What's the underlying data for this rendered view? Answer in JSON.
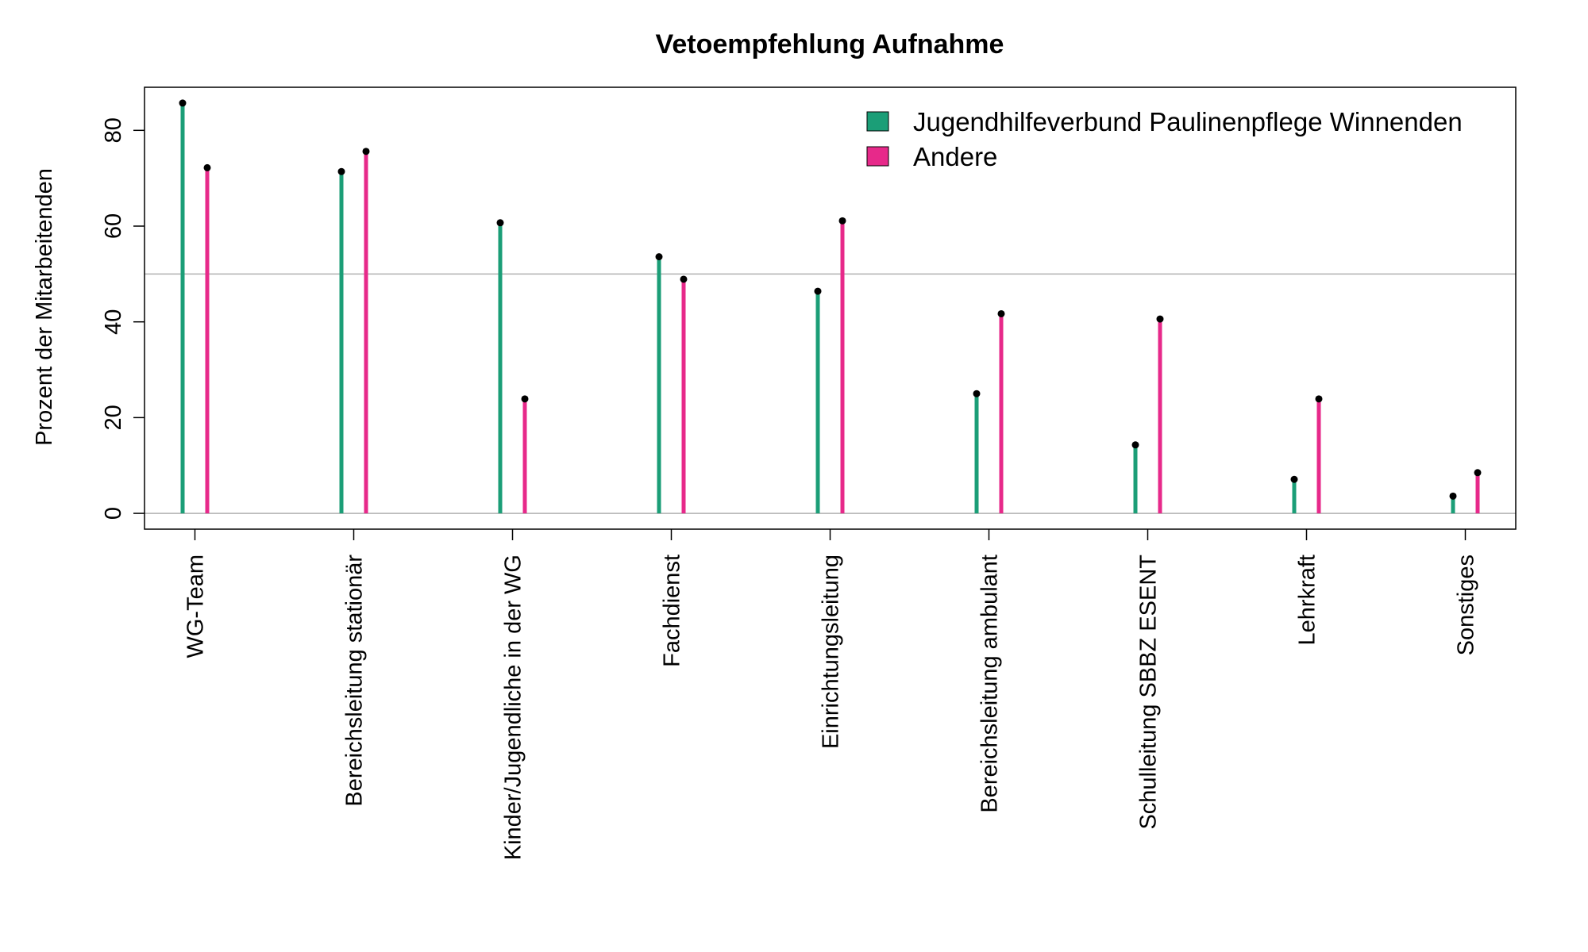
{
  "chart_data": {
    "type": "bar",
    "title": "Vetoempfehlung Aufnahme",
    "xlabel": "",
    "ylabel": "Prozent der Mitarbeitenden",
    "ylim": [
      -3.3,
      89
    ],
    "yticks": [
      0,
      20,
      40,
      60,
      80
    ],
    "reference_line": 50,
    "grid": false,
    "legend_position": "top-right",
    "categories": [
      "WG-Team",
      "Bereichsleitung stationär",
      "Kinder/Jugendliche in der WG",
      "Fachdienst",
      "Einrichtungsleitung",
      "Bereichsleitung ambulant",
      "Schulleitung SBBZ ESENT",
      "Lehrkraft",
      "Sonstiges"
    ],
    "series": [
      {
        "name": "Jugendhilfeverbund Paulinenpflege Winnenden",
        "color": "#1b9e77",
        "values": [
          85.7,
          71.4,
          60.7,
          53.6,
          46.4,
          25.0,
          14.3,
          7.1,
          3.6
        ]
      },
      {
        "name": "Andere",
        "color": "#e7298a",
        "values": [
          72.2,
          75.6,
          23.9,
          48.9,
          61.1,
          41.7,
          40.6,
          23.9,
          8.5
        ]
      }
    ]
  }
}
